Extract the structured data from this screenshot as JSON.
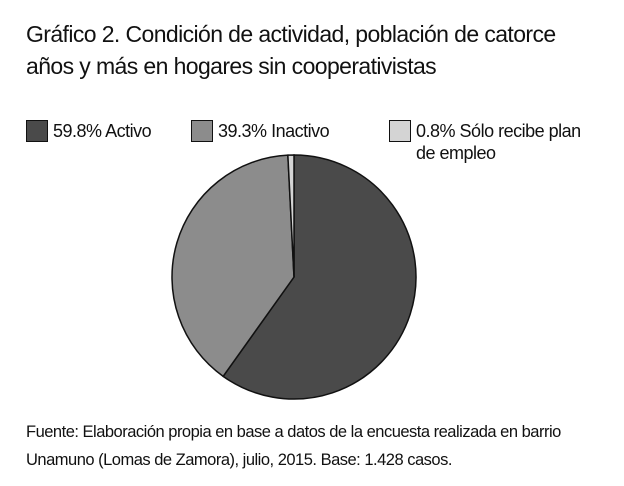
{
  "chart_data": {
    "type": "pie",
    "title": "Gráfico 2. Condición de actividad, población de catorce años y más en hogares sin cooperativistas",
    "categories": [
      "Activo",
      "Inactivo",
      "Sólo recibe plan de empleo"
    ],
    "values": [
      59.8,
      39.3,
      0.8
    ],
    "value_labels": [
      "59.8%",
      "39.3%",
      "0.8%"
    ],
    "colors": [
      "#4a4a4a",
      "#8c8c8c",
      "#d4d4d4"
    ],
    "source": "Fuente: Elaboración propia en base a datos de la encuesta realizada en barrio Unamuno (Lomas de Zamora), julio, 2015. Base: 1.428 casos."
  }
}
